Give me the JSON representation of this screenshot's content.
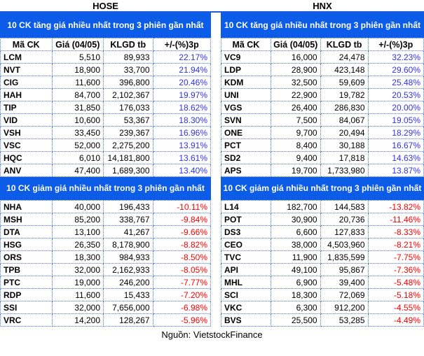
{
  "colors": {
    "banner_background": "#0d5ce8",
    "banner_text": "#ffffff",
    "title_rule": "#1e5ae0",
    "grid_dotted_border": "#4c79dc",
    "gain_text": "#3333e6",
    "loss_text": "#ff0000",
    "body_text": "#000000"
  },
  "footer": {
    "source": "Nguồn: VietstockFinance"
  },
  "chart_data": [
    {
      "type": "table",
      "title": "HOSE",
      "sections": [
        {
          "banner": "10 CK tăng giá nhiều nhất trong 3 phiên gần nhất",
          "columns": [
            "Mã CK",
            "Giá (04/05)",
            "KLGD tb",
            "+/-(%)3p"
          ],
          "rows": [
            [
              "LCM",
              "5,510",
              "89,933",
              "22.17%"
            ],
            [
              "NVT",
              "18,900",
              "33,700",
              "21.94%"
            ],
            [
              "CIG",
              "11,600",
              "396,800",
              "20.46%"
            ],
            [
              "HAH",
              "84,700",
              "2,102,367",
              "19.97%"
            ],
            [
              "TIP",
              "31,850",
              "176,033",
              "18.62%"
            ],
            [
              "VID",
              "10,600",
              "53,367",
              "18.30%"
            ],
            [
              "VSH",
              "33,450",
              "239,367",
              "16.96%"
            ],
            [
              "VSC",
              "52,000",
              "2,275,200",
              "13.91%"
            ],
            [
              "HQC",
              "6,010",
              "14,181,800",
              "13.61%"
            ],
            [
              "ANV",
              "47,400",
              "1,689,300",
              "13.40%"
            ]
          ]
        },
        {
          "banner": "10 CK giảm giá nhiều nhất trong 3 phiên gần nhất",
          "rows": [
            [
              "NHA",
              "40,000",
              "196,433",
              "-10.11%"
            ],
            [
              "MSH",
              "85,200",
              "338,767",
              "-9.84%"
            ],
            [
              "DTA",
              "13,100",
              "41,267",
              "-9.66%"
            ],
            [
              "HSG",
              "26,350",
              "8,178,900",
              "-8.82%"
            ],
            [
              "ORS",
              "18,300",
              "984,933",
              "-8.50%"
            ],
            [
              "TPB",
              "32,000",
              "2,162,933",
              "-8.05%"
            ],
            [
              "PTC",
              "19,000",
              "246,200",
              "-7.77%"
            ],
            [
              "RDP",
              "11,600",
              "15,433",
              "-7.20%"
            ],
            [
              "SSI",
              "32,000",
              "7,656,000",
              "-6.98%"
            ],
            [
              "VRC",
              "14,200",
              "128,267",
              "-5.96%"
            ]
          ]
        }
      ]
    },
    {
      "type": "table",
      "title": "HNX",
      "sections": [
        {
          "banner": "10 CK tăng giá nhiều nhất trong 3 phiên gần nhất",
          "columns": [
            "Mã CK",
            "Giá (04/05)",
            "KLGD tb",
            "+/-(%)3p"
          ],
          "rows": [
            [
              "VC9",
              "16,000",
              "24,478",
              "32.23%"
            ],
            [
              "LDP",
              "28,900",
              "423,148",
              "29.60%"
            ],
            [
              "KDM",
              "32,500",
              "59,609",
              "25.48%"
            ],
            [
              "UNI",
              "22,900",
              "19,782",
              "20.53%"
            ],
            [
              "VGS",
              "26,400",
              "286,830",
              "20.00%"
            ],
            [
              "SVN",
              "7,500",
              "84,067",
              "19.05%"
            ],
            [
              "ONE",
              "9,700",
              "20,494",
              "18.29%"
            ],
            [
              "PCT",
              "8,400",
              "30,188",
              "16.67%"
            ],
            [
              "SD2",
              "9,400",
              "17,818",
              "14.63%"
            ],
            [
              "APS",
              "19,700",
              "1,733,980",
              "13.87%"
            ]
          ]
        },
        {
          "banner": "10 CK giảm giá nhiều nhất trong 3 phiên gần nhất",
          "rows": [
            [
              "L14",
              "182,700",
              "144,583",
              "-13.82%"
            ],
            [
              "POT",
              "30,900",
              "20,736",
              "-11.46%"
            ],
            [
              "DS3",
              "6,600",
              "127,833",
              "-8.33%"
            ],
            [
              "CEO",
              "38,000",
              "4,503,960",
              "-8.21%"
            ],
            [
              "TVC",
              "11,900",
              "1,835,599",
              "-7.75%"
            ],
            [
              "API",
              "49,100",
              "95,867",
              "-7.36%"
            ],
            [
              "MHL",
              "6,900",
              "39,400",
              "-5.48%"
            ],
            [
              "SCI",
              "18,300",
              "72,069",
              "-5.18%"
            ],
            [
              "VKC",
              "6,300",
              "912,200",
              "-4.55%"
            ],
            [
              "BVS",
              "25,500",
              "53,285",
              "-4.49%"
            ]
          ]
        }
      ]
    }
  ]
}
